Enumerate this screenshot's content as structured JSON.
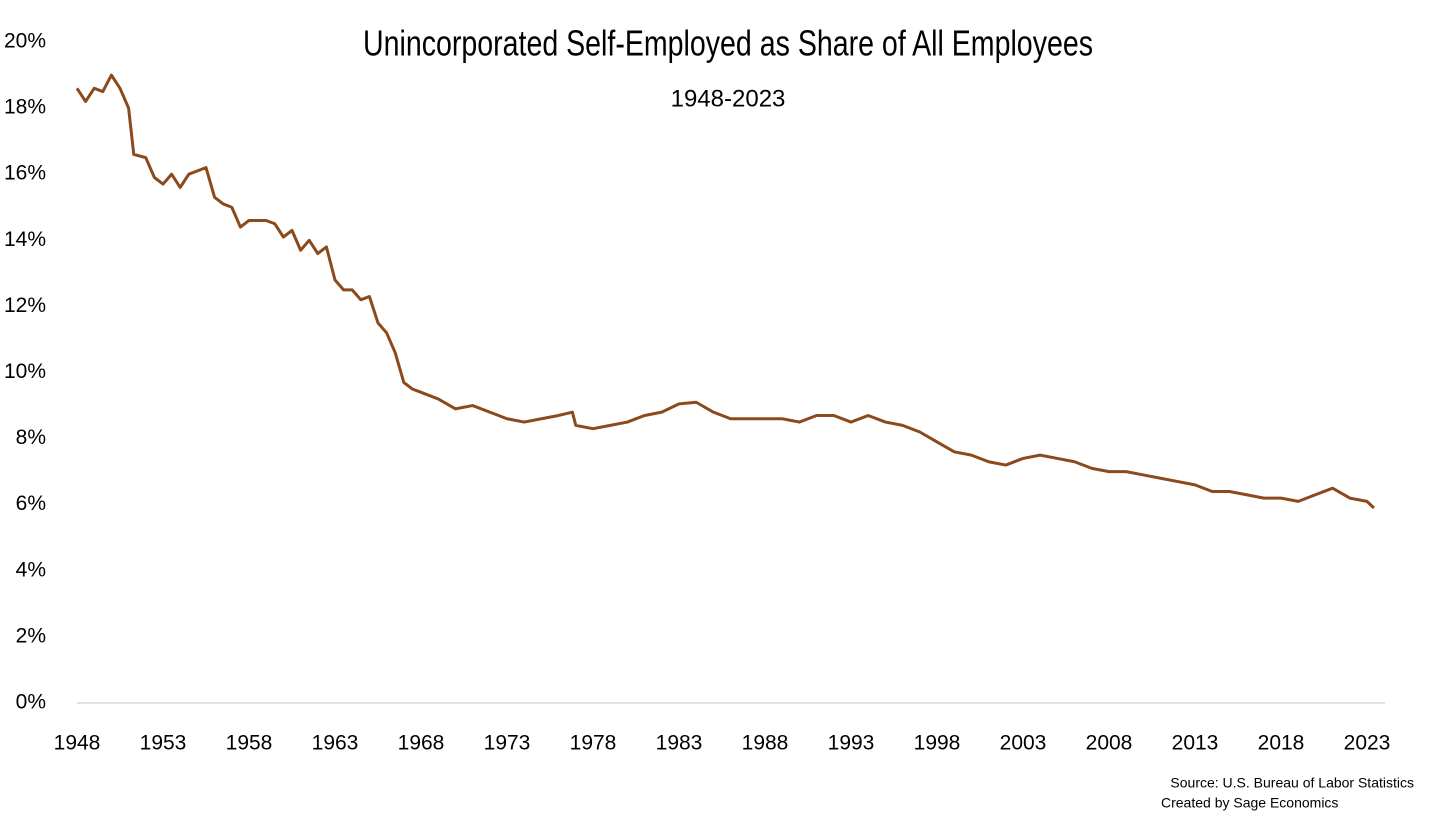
{
  "chart_data": {
    "type": "line",
    "title": "Unincorporated Self-Employed as Share of All Employees",
    "subtitle": "1948-2023",
    "source": [
      "Source: U.S. Bureau of Labor Statistics",
      "Created by Sage Economics"
    ],
    "x": [
      1948,
      1948.5,
      1949,
      1949.5,
      1950,
      1950.5,
      1951,
      1951.3,
      1952,
      1952.5,
      1953,
      1953.5,
      1954,
      1954.5,
      1955,
      1955.5,
      1956,
      1956.5,
      1957,
      1957.5,
      1958,
      1958.5,
      1959,
      1959.5,
      1960,
      1960.5,
      1961,
      1961.5,
      1962,
      1962.5,
      1963,
      1963.5,
      1964,
      1964.5,
      1965,
      1965.5,
      1966,
      1966.5,
      1967,
      1967.5,
      1968,
      1969,
      1970,
      1971,
      1972,
      1973,
      1974,
      1975,
      1976,
      1976.8,
      1977,
      1978,
      1979,
      1980,
      1981,
      1982,
      1983,
      1984,
      1985,
      1986,
      1987,
      1988,
      1989,
      1990,
      1991,
      1992,
      1993,
      1994,
      1995,
      1996,
      1997,
      1998,
      1999,
      2000,
      2001,
      2002,
      2003,
      2004,
      2005,
      2006,
      2007,
      2008,
      2009,
      2010,
      2011,
      2012,
      2013,
      2014,
      2015,
      2016,
      2017,
      2018,
      2019,
      2020,
      2021,
      2022,
      2023,
      2023.4
    ],
    "values": [
      18.6,
      18.2,
      18.6,
      18.5,
      19.0,
      18.6,
      18.0,
      16.6,
      16.5,
      15.9,
      15.7,
      16.0,
      15.6,
      16.0,
      16.1,
      16.2,
      15.3,
      15.1,
      15.0,
      14.4,
      14.6,
      14.6,
      14.6,
      14.5,
      14.1,
      14.3,
      13.7,
      14.0,
      13.6,
      13.8,
      12.8,
      12.5,
      12.5,
      12.2,
      12.3,
      11.5,
      11.2,
      10.6,
      9.7,
      9.5,
      9.4,
      9.2,
      8.9,
      9.0,
      8.8,
      8.6,
      8.5,
      8.6,
      8.7,
      8.8,
      8.4,
      8.3,
      8.4,
      8.5,
      8.7,
      8.8,
      9.05,
      9.1,
      8.8,
      8.6,
      8.6,
      8.6,
      8.6,
      8.5,
      8.7,
      8.7,
      8.5,
      8.7,
      8.5,
      8.4,
      8.2,
      7.9,
      7.6,
      7.5,
      7.3,
      7.2,
      7.4,
      7.5,
      7.4,
      7.3,
      7.1,
      7.0,
      7.0,
      6.9,
      6.8,
      6.7,
      6.6,
      6.4,
      6.4,
      6.3,
      6.2,
      6.2,
      6.1,
      6.3,
      6.5,
      6.2,
      6.1,
      5.9
    ],
    "color": "#8b4a1c",
    "xlim": [
      1948,
      2023
    ],
    "xticks": [
      1948,
      1953,
      1958,
      1963,
      1968,
      1973,
      1978,
      1983,
      1988,
      1993,
      1998,
      2003,
      2008,
      2013,
      2018,
      2023
    ],
    "ylim": [
      0,
      20
    ],
    "yticks": [
      {
        "value": 0,
        "label": "0%"
      },
      {
        "value": 2,
        "label": "2%"
      },
      {
        "value": 4,
        "label": "4%"
      },
      {
        "value": 6,
        "label": "6%"
      },
      {
        "value": 8,
        "label": "8%"
      },
      {
        "value": 10,
        "label": "10%"
      },
      {
        "value": 12,
        "label": "12%"
      },
      {
        "value": 14,
        "label": "14%"
      },
      {
        "value": 16,
        "label": "16%"
      },
      {
        "value": 18,
        "label": "18%"
      },
      {
        "value": 20,
        "label": "20%"
      }
    ],
    "grid": false
  }
}
